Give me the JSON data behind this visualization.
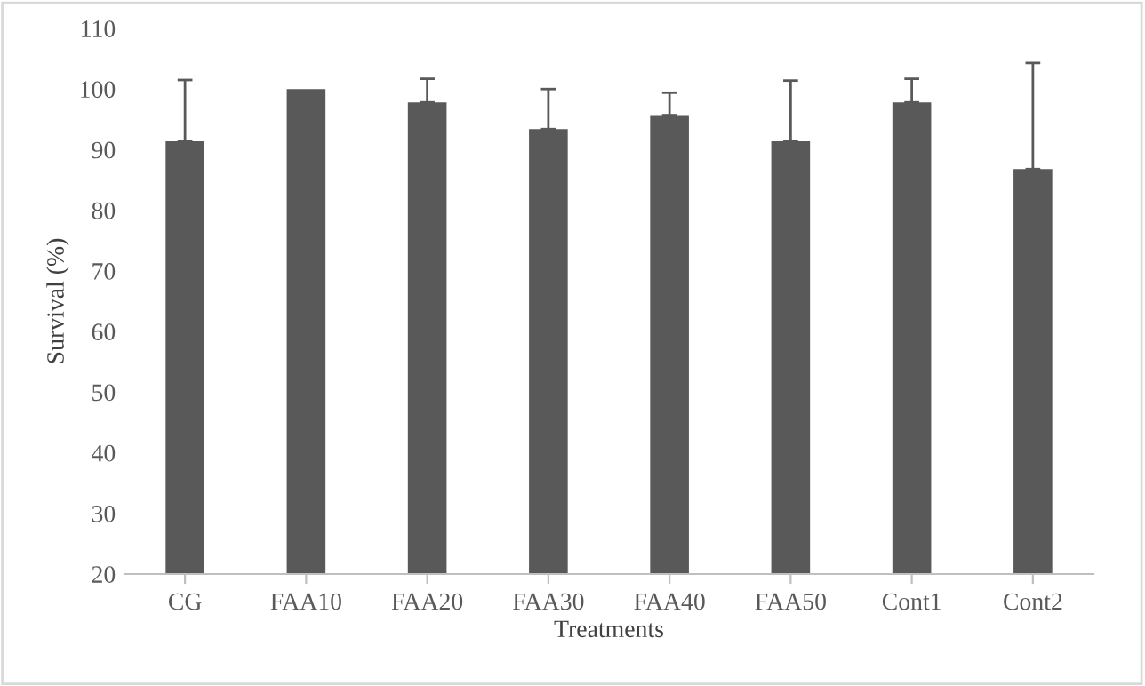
{
  "chart_data": {
    "type": "bar",
    "xlabel": "Treatments",
    "ylabel": "Survival (%)",
    "categories": [
      "CG",
      "FAA10",
      "FAA20",
      "FAA30",
      "FAA40",
      "FAA50",
      "Cont1",
      "Cont2"
    ],
    "values": [
      91.4,
      100,
      97.8,
      93.4,
      95.7,
      91.4,
      97.8,
      86.8
    ],
    "errors": [
      [
        91.4,
        101.5
      ],
      null,
      [
        97.8,
        101.7
      ],
      [
        93.4,
        100
      ],
      [
        95.7,
        99.4
      ],
      [
        91.4,
        101.4
      ],
      [
        97.8,
        101.7
      ],
      [
        86.8,
        104.3
      ]
    ],
    "color": "#595959",
    "ylim": [
      20,
      110
    ],
    "yticks": [
      20,
      30,
      40,
      50,
      60,
      70,
      80,
      90,
      100,
      110
    ],
    "grid": false,
    "legend": false
  }
}
